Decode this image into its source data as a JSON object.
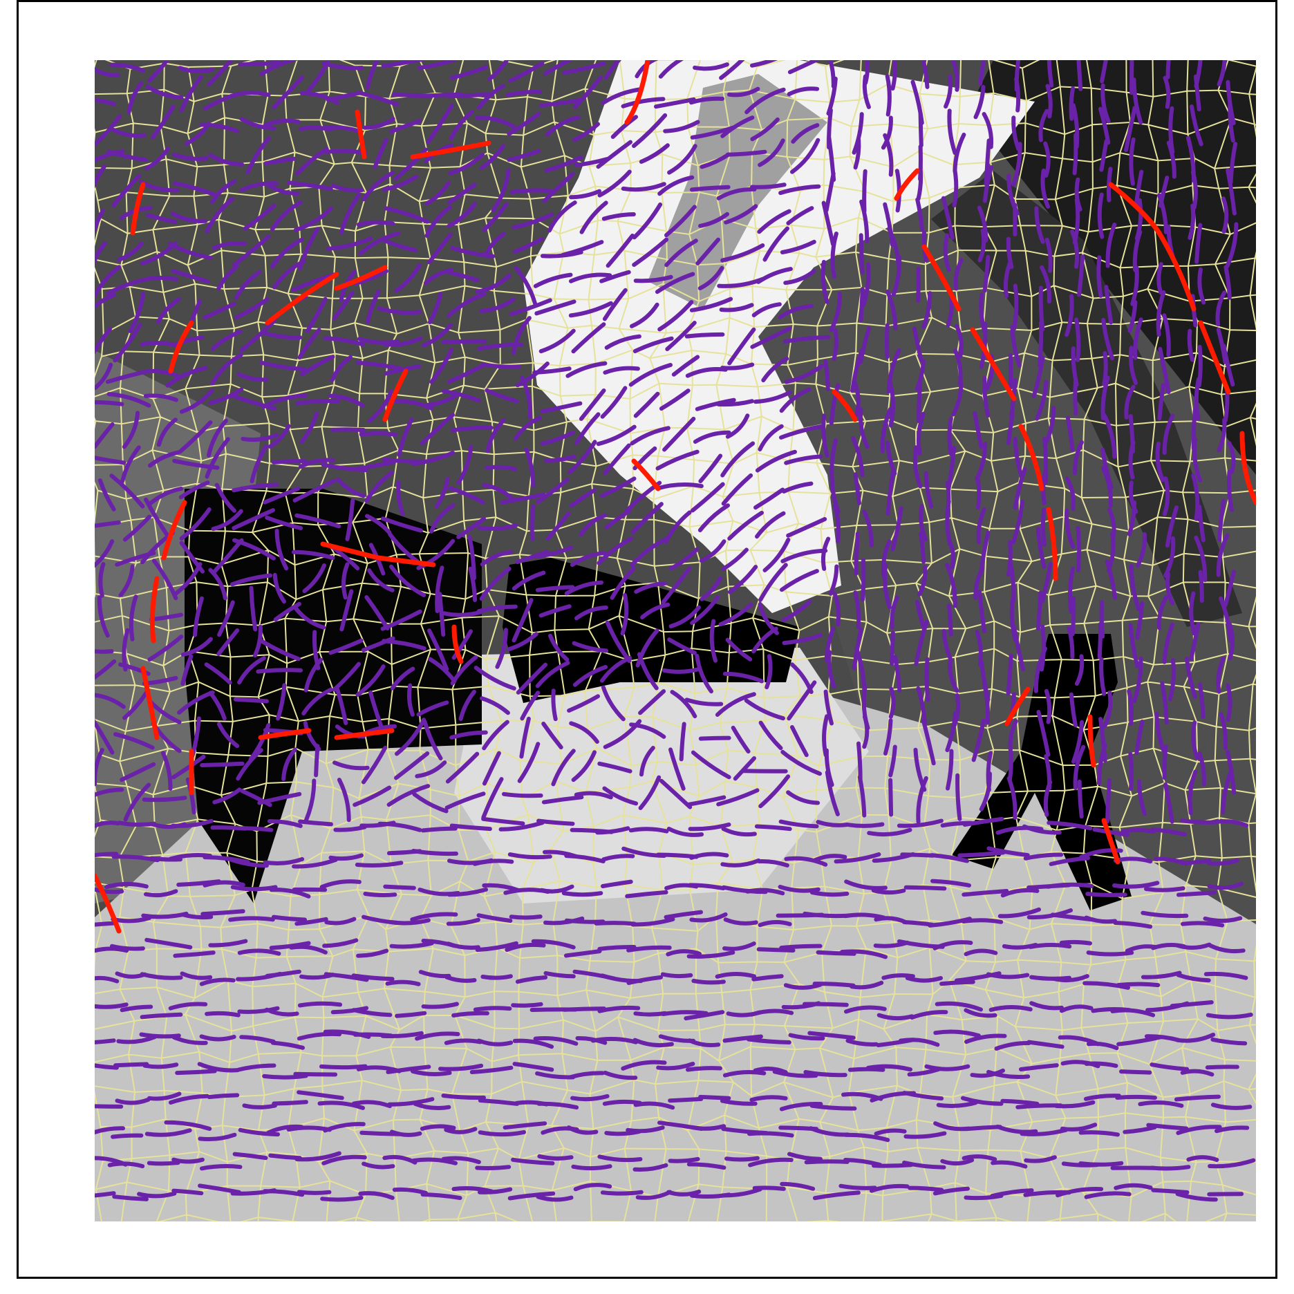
{
  "figure": {
    "kind": "superpixel segmentation overlay with orientation strokes",
    "colors": {
      "frame": "#000000",
      "background": "#ffffff",
      "superpixel_boundary": "#e6e29a",
      "stroke_default": "#6a22a8",
      "stroke_highlight": "#ff1a00",
      "gray_palette": [
        "#000000",
        "#1c1c1c",
        "#2f2f2f",
        "#3c3c3c",
        "#4a4a4a",
        "#5a5a5a",
        "#6b6b6b",
        "#8a8a8a",
        "#a8a8a8",
        "#bdbdbd",
        "#cccccc",
        "#dddddd",
        "#eeeeee",
        "#f8f8f8"
      ]
    },
    "regions": [
      {
        "name": "upper-left-dark-gray",
        "shade": "#4a4a4a"
      },
      {
        "name": "left-edge-gray",
        "shade": "#6b6b6b"
      },
      {
        "name": "white-diagonal-band",
        "shade": "#f2f2f2"
      },
      {
        "name": "upper-right-black",
        "shade": "#1c1c1c"
      },
      {
        "name": "right-mid-gray",
        "shade": "#4f4f4f"
      },
      {
        "name": "center-black-block",
        "shade": "#000000"
      },
      {
        "name": "left-black-block",
        "shade": "#050505"
      },
      {
        "name": "right-black-figure",
        "shade": "#000000"
      },
      {
        "name": "light-floor",
        "shade": "#c4c4c4"
      },
      {
        "name": "bright-floor-streak",
        "shade": "#eeeeee"
      }
    ]
  }
}
